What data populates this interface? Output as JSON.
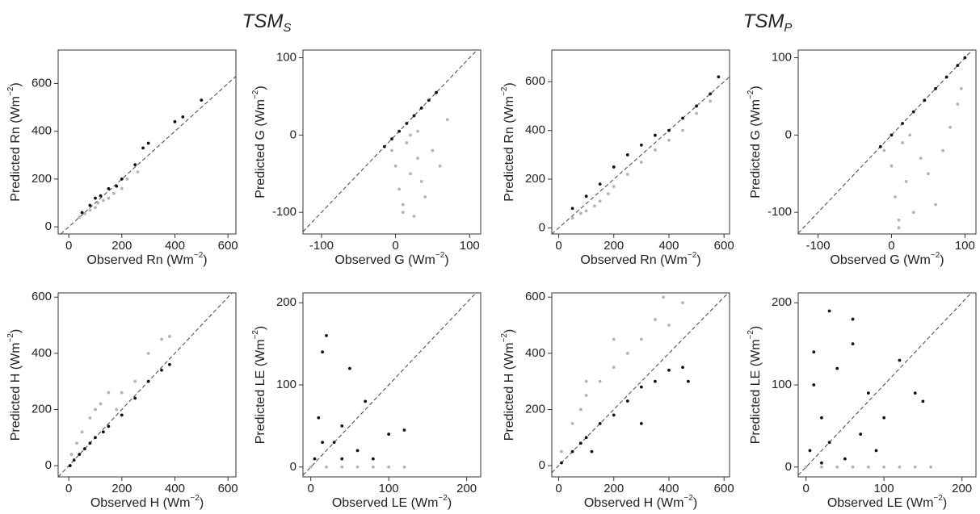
{
  "figure_titles": [
    {
      "text": "TSM",
      "sub": "S"
    },
    {
      "text": "TSM",
      "sub": "P"
    }
  ],
  "chart_data": [
    {
      "type": "scatter",
      "xlabel": {
        "text": "Observed Rn (Wm",
        "sup": "−2",
        "close": ")"
      },
      "ylabel": {
        "text": "Predicted Rn (Wm",
        "sup": "−2",
        "close": ")"
      },
      "xlim": [
        -40,
        630
      ],
      "ylim": [
        -30,
        740
      ],
      "xticks": [
        0,
        200,
        400,
        600
      ],
      "yticks": [
        0,
        200,
        400,
        600
      ],
      "series": [
        {
          "color": "#b3b3b3",
          "x": [
            40,
            60,
            80,
            100,
            110,
            130,
            150,
            170,
            200,
            220,
            260
          ],
          "y": [
            40,
            55,
            70,
            80,
            100,
            110,
            120,
            140,
            160,
            200,
            230
          ]
        },
        {
          "color": "#111111",
          "x": [
            50,
            80,
            100,
            120,
            150,
            180,
            200,
            250,
            280,
            300,
            400,
            430,
            500
          ],
          "y": [
            60,
            90,
            120,
            130,
            160,
            170,
            200,
            260,
            330,
            350,
            440,
            460,
            530
          ]
        }
      ]
    },
    {
      "type": "scatter",
      "xlabel": {
        "text": "Observed G (Wm",
        "sup": "−2",
        "close": ")"
      },
      "ylabel": {
        "text": "Predicted G (Wm",
        "sup": "−2",
        "close": ")"
      },
      "xlim": [
        -125,
        115
      ],
      "ylim": [
        -128,
        110
      ],
      "xticks": [
        -100,
        0,
        100
      ],
      "yticks": [
        -100,
        0,
        100
      ],
      "series": [
        {
          "color": "#b3b3b3",
          "x": [
            -5,
            0,
            5,
            10,
            15,
            20,
            25,
            30,
            35,
            40,
            50,
            60,
            70,
            10,
            20,
            30
          ],
          "y": [
            -20,
            -40,
            -70,
            -90,
            -10,
            -50,
            -105,
            -30,
            -60,
            -80,
            -20,
            -40,
            20,
            -100,
            0,
            5
          ]
        },
        {
          "color": "#111111",
          "x": [
            -15,
            -5,
            5,
            15,
            25,
            35,
            45,
            55
          ],
          "y": [
            -15,
            -5,
            5,
            15,
            25,
            35,
            45,
            55
          ]
        }
      ]
    },
    {
      "type": "scatter",
      "xlabel": {
        "text": "Observed Rn (Wm",
        "sup": "−2",
        "close": ")"
      },
      "ylabel": {
        "text": "Predicted Rn (Wm",
        "sup": "−2",
        "close": ")"
      },
      "xlim": [
        -25,
        620
      ],
      "ylim": [
        -25,
        730
      ],
      "xticks": [
        0,
        200,
        400,
        600
      ],
      "yticks": [
        0,
        200,
        400,
        600
      ],
      "series": [
        {
          "color": "#b3b3b3",
          "x": [
            50,
            80,
            100,
            130,
            150,
            180,
            200,
            250,
            300,
            350,
            400,
            450,
            500,
            550
          ],
          "y": [
            40,
            60,
            70,
            90,
            110,
            140,
            170,
            220,
            270,
            320,
            360,
            400,
            470,
            520
          ]
        },
        {
          "color": "#111111",
          "x": [
            50,
            100,
            150,
            200,
            250,
            300,
            350,
            400,
            450,
            500,
            550,
            580
          ],
          "y": [
            80,
            130,
            180,
            250,
            300,
            340,
            380,
            400,
            450,
            500,
            550,
            620
          ]
        }
      ]
    },
    {
      "type": "scatter",
      "xlabel": {
        "text": "Observed G (Wm",
        "sup": "−2",
        "close": ")"
      },
      "ylabel": {
        "text": "Predicted G (Wm",
        "sup": "−2",
        "close": ")"
      },
      "xlim": [
        -127,
        115
      ],
      "ylim": [
        -128,
        110
      ],
      "xticks": [
        -100,
        0,
        100
      ],
      "yticks": [
        -100,
        0,
        100
      ],
      "series": [
        {
          "color": "#b3b3b3",
          "x": [
            -10,
            0,
            5,
            10,
            15,
            20,
            30,
            40,
            50,
            60,
            70,
            80,
            90,
            95,
            10,
            25
          ],
          "y": [
            -20,
            -40,
            -80,
            -110,
            -10,
            -60,
            -100,
            -30,
            -50,
            -90,
            -20,
            10,
            40,
            60,
            -120,
            0
          ]
        },
        {
          "color": "#111111",
          "x": [
            -15,
            0,
            15,
            30,
            45,
            60,
            75,
            90,
            100
          ],
          "y": [
            -15,
            0,
            15,
            30,
            45,
            60,
            75,
            90,
            100
          ]
        }
      ]
    },
    {
      "type": "scatter",
      "xlabel": {
        "text": "Observed H (Wm",
        "sup": "−2",
        "close": ")"
      },
      "ylabel": {
        "text": "Predicted H (Wm",
        "sup": "−2",
        "close": ")"
      },
      "xlim": [
        -40,
        630
      ],
      "ylim": [
        -40,
        615
      ],
      "xticks": [
        0,
        200,
        400,
        600
      ],
      "yticks": [
        0,
        200,
        400,
        600
      ],
      "series": [
        {
          "color": "#b3b3b3",
          "x": [
            10,
            30,
            50,
            80,
            100,
            120,
            150,
            180,
            200,
            250,
            300,
            350,
            380
          ],
          "y": [
            40,
            80,
            120,
            170,
            200,
            220,
            260,
            200,
            260,
            300,
            400,
            450,
            460
          ]
        },
        {
          "color": "#111111",
          "x": [
            5,
            20,
            40,
            60,
            80,
            100,
            130,
            150,
            200,
            250,
            300,
            350,
            380
          ],
          "y": [
            0,
            20,
            40,
            60,
            80,
            100,
            120,
            140,
            180,
            240,
            300,
            340,
            360
          ]
        }
      ]
    },
    {
      "type": "scatter",
      "xlabel": {
        "text": "Observed LE (Wm",
        "sup": "−2",
        "close": ")"
      },
      "ylabel": {
        "text": "Predicted LE (Wm",
        "sup": "−2",
        "close": ")"
      },
      "xlim": [
        -10,
        218
      ],
      "ylim": [
        -12,
        212
      ],
      "xticks": [
        0,
        100,
        200
      ],
      "yticks": [
        0,
        100,
        200
      ],
      "series": [
        {
          "color": "#b3b3b3",
          "x": [
            0,
            20,
            40,
            60,
            80,
            100,
            120
          ],
          "y": [
            0,
            0,
            0,
            0,
            0,
            0,
            0
          ]
        },
        {
          "color": "#111111",
          "x": [
            5,
            10,
            15,
            20,
            30,
            40,
            50,
            60,
            70,
            80,
            100,
            15,
            40,
            120
          ],
          "y": [
            10,
            60,
            140,
            160,
            30,
            50,
            120,
            20,
            80,
            10,
            40,
            30,
            10,
            45
          ]
        }
      ]
    },
    {
      "type": "scatter",
      "xlabel": {
        "text": "Observed H (Wm",
        "sup": "−2",
        "close": ")"
      },
      "ylabel": {
        "text": "Predicted H (Wm",
        "sup": "−2",
        "close": ")"
      },
      "xlim": [
        -25,
        620
      ],
      "ylim": [
        -40,
        615
      ],
      "xticks": [
        0,
        200,
        400,
        600
      ],
      "yticks": [
        0,
        200,
        400,
        600
      ],
      "series": [
        {
          "color": "#b3b3b3",
          "x": [
            10,
            50,
            80,
            100,
            150,
            200,
            250,
            300,
            350,
            380,
            400,
            450,
            200,
            100
          ],
          "y": [
            50,
            150,
            200,
            250,
            300,
            350,
            400,
            450,
            520,
            600,
            500,
            580,
            450,
            300
          ]
        },
        {
          "color": "#111111",
          "x": [
            10,
            50,
            80,
            100,
            150,
            200,
            250,
            300,
            350,
            400,
            450,
            470,
            120,
            300
          ],
          "y": [
            10,
            50,
            80,
            100,
            150,
            180,
            230,
            280,
            300,
            340,
            350,
            300,
            50,
            150
          ]
        }
      ]
    },
    {
      "type": "scatter",
      "xlabel": {
        "text": "Observed LE (Wm",
        "sup": "−2",
        "close": ")"
      },
      "ylabel": {
        "text": "Predicted LE (Wm",
        "sup": "−2",
        "close": ")"
      },
      "xlim": [
        -10,
        218
      ],
      "ylim": [
        -12,
        212
      ],
      "xticks": [
        0,
        100,
        200
      ],
      "yticks": [
        0,
        100,
        200
      ],
      "series": [
        {
          "color": "#b3b3b3",
          "x": [
            0,
            20,
            40,
            60,
            80,
            100,
            120,
            140,
            160
          ],
          "y": [
            0,
            0,
            0,
            0,
            0,
            0,
            0,
            0,
            0
          ]
        },
        {
          "color": "#111111",
          "x": [
            5,
            10,
            20,
            30,
            40,
            50,
            60,
            70,
            80,
            100,
            120,
            140,
            150,
            10,
            30,
            60,
            90,
            20
          ],
          "y": [
            20,
            140,
            60,
            30,
            120,
            10,
            180,
            40,
            90,
            60,
            130,
            90,
            80,
            100,
            190,
            150,
            20,
            5
          ]
        }
      ]
    }
  ]
}
